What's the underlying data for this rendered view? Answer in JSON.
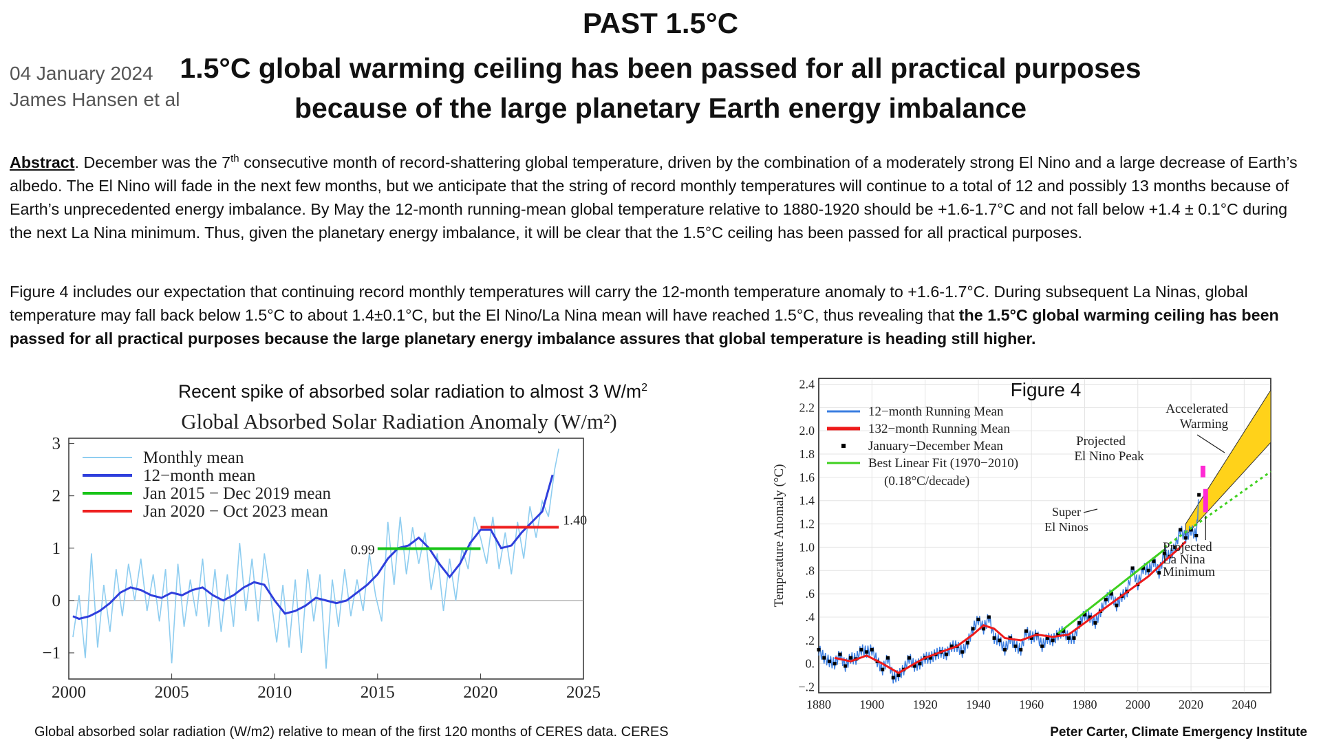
{
  "header": {
    "title": "PAST 1.5°C",
    "subtitle_line1": "1.5°C global warming ceiling has been passed for all practical purposes",
    "subtitle_line2": "because of the large planetary Earth energy imbalance",
    "date": "04 January 2024",
    "author": "James Hansen et al"
  },
  "abstract": {
    "label": "Abstract",
    "text_pre": ". December was the 7",
    "sup": "th",
    "text_post": " consecutive month of record-shattering global temperature, driven by the combination of a moderately strong El Nino and a large decrease of Earth’s albedo. The El Nino will fade in the next few months, but we anticipate that the string of record monthly temperatures will continue to a total of 12 and possibly 13 months because of Earth’s unprecedented energy imbalance. By May the 12-month running-mean global temperature relative to 1880-1920 should be +1.6-1.7°C and not fall below +1.4 ± 0.1°C during the next La Nina minimum. Thus, given the planetary energy imbalance, it will be clear that the 1.5°C ceiling has been passed for all practical purposes."
  },
  "fig4_paragraph": {
    "text": "Figure 4 includes our expectation that continuing record monthly temperatures will carry the 12-month temperature anomaly to +1.6-1.7°C. During subsequent La Ninas, global temperature may fall back below 1.5°C to about 1.4±0.1°C, but the El Nino/La Nina mean will have reached 1.5°C, thus revealing that ",
    "bold": "the 1.5°C global warming ceiling has been passed for all practical purposes because the large planetary energy imbalance assures that global temperature is heading still higher."
  },
  "left_figure": {
    "header_pre": "Recent spike of absorbed solar radiation to almost 3 W/m",
    "header_sup": "2",
    "caption": "Global absorbed solar radiation (W/m2) relative to mean of the first 120 months of CERES data. CERES"
  },
  "right_figure": {
    "credit": "Peter Carter, Climate Emergency Institute"
  },
  "chart_data": [
    {
      "type": "line",
      "title": "Global Absorbed Solar Radiation Anomaly (W/m²)",
      "xlim": [
        2000,
        2025
      ],
      "ylim": [
        -1.5,
        3.1
      ],
      "xticks": [
        2000,
        2005,
        2010,
        2015,
        2020,
        2025
      ],
      "yticks": [
        -1,
        0,
        1,
        2,
        3
      ],
      "legend": [
        "Monthly mean",
        "12−month mean",
        "Jan 2015 − Dec 2019 mean",
        "Jan 2020 − Oct 2023 mean"
      ],
      "legend_position": "top-left",
      "colors": {
        "monthly": "#8ecdf0",
        "twelve": "#2f3fdc",
        "mean1": "#18c418",
        "mean2": "#ee2020"
      },
      "mean_lines": [
        {
          "name": "Jan 2015 − Dec 2019 mean",
          "x": [
            2015,
            2020
          ],
          "y": 0.99,
          "label": "0.99"
        },
        {
          "name": "Jan 2020 − Oct 2023 mean",
          "x": [
            2020,
            2023.8
          ],
          "y": 1.4,
          "label": "1.40"
        }
      ],
      "twelve_month": {
        "x": [
          2000.2,
          2000.5,
          2001,
          2001.5,
          2002,
          2002.5,
          2003,
          2003.5,
          2004,
          2004.5,
          2005,
          2005.5,
          2006,
          2006.5,
          2007,
          2007.5,
          2008,
          2008.5,
          2009,
          2009.5,
          2010,
          2010.5,
          2011,
          2011.5,
          2012,
          2012.5,
          2013,
          2013.5,
          2014,
          2014.5,
          2015,
          2015.5,
          2016,
          2016.5,
          2017,
          2017.5,
          2018,
          2018.5,
          2019,
          2019.5,
          2020,
          2020.5,
          2021,
          2021.5,
          2022,
          2022.5,
          2023,
          2023.5
        ],
        "y": [
          -0.3,
          -0.35,
          -0.3,
          -0.2,
          -0.05,
          0.15,
          0.25,
          0.2,
          0.1,
          0.05,
          0.15,
          0.1,
          0.2,
          0.25,
          0.1,
          0.0,
          0.1,
          0.25,
          0.35,
          0.3,
          0.0,
          -0.25,
          -0.2,
          -0.1,
          0.05,
          0.0,
          -0.05,
          0.0,
          0.15,
          0.3,
          0.5,
          0.8,
          1.0,
          1.05,
          1.2,
          1.0,
          0.7,
          0.45,
          0.7,
          1.1,
          1.35,
          1.35,
          1.0,
          1.05,
          1.3,
          1.5,
          1.7,
          2.4
        ]
      },
      "monthly": {
        "x": [
          2000.2,
          2000.5,
          2000.8,
          2001.1,
          2001.4,
          2001.7,
          2002,
          2002.3,
          2002.6,
          2002.9,
          2003.2,
          2003.5,
          2003.8,
          2004.1,
          2004.4,
          2004.7,
          2005,
          2005.3,
          2005.6,
          2005.9,
          2006.2,
          2006.5,
          2006.8,
          2007.1,
          2007.4,
          2007.7,
          2008,
          2008.3,
          2008.6,
          2008.9,
          2009.2,
          2009.5,
          2009.8,
          2010.1,
          2010.4,
          2010.7,
          2011,
          2011.3,
          2011.6,
          2011.9,
          2012.2,
          2012.5,
          2012.8,
          2013.1,
          2013.4,
          2013.7,
          2014,
          2014.3,
          2014.6,
          2014.9,
          2015.2,
          2015.5,
          2015.8,
          2016.1,
          2016.4,
          2016.7,
          2017,
          2017.3,
          2017.6,
          2017.9,
          2018.2,
          2018.5,
          2018.8,
          2019.1,
          2019.4,
          2019.7,
          2020,
          2020.3,
          2020.6,
          2020.9,
          2021.2,
          2021.5,
          2021.8,
          2022.1,
          2022.4,
          2022.7,
          2023,
          2023.3,
          2023.6,
          2023.8
        ],
        "y": [
          -0.7,
          0.1,
          -1.1,
          0.9,
          -0.9,
          0.3,
          -0.6,
          0.6,
          -0.3,
          0.7,
          0.0,
          0.8,
          -0.2,
          0.5,
          -0.4,
          0.6,
          -1.2,
          0.7,
          -0.5,
          0.4,
          -0.3,
          0.8,
          -0.5,
          0.6,
          -0.6,
          0.5,
          -0.5,
          1.1,
          -0.2,
          0.8,
          -0.4,
          0.9,
          0.1,
          -0.8,
          0.3,
          -0.9,
          0.4,
          -1.0,
          0.6,
          -0.4,
          0.5,
          -1.3,
          0.4,
          -0.5,
          0.6,
          -0.3,
          0.4,
          -0.2,
          0.9,
          0.1,
          -0.4,
          1.5,
          0.3,
          1.6,
          0.5,
          1.4,
          0.7,
          1.3,
          0.2,
          0.9,
          -0.2,
          0.8,
          0.0,
          1.0,
          0.6,
          1.6,
          1.2,
          0.7,
          1.6,
          0.6,
          1.3,
          0.5,
          1.5,
          0.8,
          1.8,
          1.2,
          1.9,
          1.6,
          2.5,
          2.9
        ]
      }
    },
    {
      "type": "scatter",
      "title": "Figure 4",
      "ylabel": "Temperature Anomaly (°C)",
      "xlim": [
        1880,
        2050
      ],
      "ylim": [
        -0.25,
        2.45
      ],
      "xticks": [
        1880,
        1900,
        1920,
        1940,
        1960,
        1980,
        2000,
        2020,
        2040
      ],
      "yticks": [
        "−.2",
        "0.",
        ".2",
        ".4",
        ".6",
        ".8",
        "1.0",
        "1.2",
        "1.4",
        "1.6",
        "1.8",
        "2.0",
        "2.2",
        "2.4"
      ],
      "ytick_values": [
        -0.2,
        0,
        0.2,
        0.4,
        0.6,
        0.8,
        1.0,
        1.2,
        1.4,
        1.6,
        1.8,
        2.0,
        2.2,
        2.4
      ],
      "legend": [
        "12−month Running Mean",
        "132−month Running Mean",
        "January−December Mean",
        "Best Linear Fit (1970−2010)"
      ],
      "legend_note": "(0.18°C/decade)",
      "legend_position": "top-left",
      "annotations": [
        "Accelerated Warming",
        "Projected El Nino Peak",
        "Super El Ninos",
        "Projected La Nina Minimum"
      ],
      "annotation_lines": {
        "accel_line1": "Accelerated",
        "accel_line2": "Warming",
        "elnino_line1": "Projected",
        "elnino_line2": "El Nino Peak",
        "super_line1": "Super",
        "super_line2": "El Ninos",
        "lanina_line1": "Projected",
        "lanina_line2": "La Nina",
        "lanina_line3": "Minimum"
      },
      "colors": {
        "twelve": "#3a7de0",
        "long": "#ee1a1a",
        "annual": "#000000",
        "fit": "#3fd01f",
        "wedge": "#ffd21a",
        "projection": "#ff2ad4"
      },
      "annual": {
        "x": [
          1880,
          1882,
          1884,
          1886,
          1888,
          1890,
          1892,
          1894,
          1896,
          1898,
          1900,
          1902,
          1904,
          1906,
          1908,
          1910,
          1912,
          1914,
          1916,
          1918,
          1920,
          1922,
          1924,
          1926,
          1928,
          1930,
          1932,
          1934,
          1936,
          1938,
          1940,
          1942,
          1944,
          1946,
          1948,
          1950,
          1952,
          1954,
          1956,
          1958,
          1960,
          1962,
          1964,
          1966,
          1968,
          1970,
          1972,
          1974,
          1976,
          1978,
          1980,
          1982,
          1984,
          1986,
          1988,
          1990,
          1992,
          1994,
          1996,
          1998,
          2000,
          2002,
          2004,
          2006,
          2008,
          2010,
          2012,
          2014,
          2016,
          2018,
          2020,
          2022,
          2023
        ],
        "y": [
          0.12,
          0.05,
          0.02,
          0.0,
          0.08,
          -0.02,
          0.05,
          0.04,
          0.12,
          0.1,
          0.12,
          0.02,
          -0.05,
          0.05,
          -0.12,
          -0.1,
          -0.05,
          0.05,
          -0.02,
          0.0,
          0.05,
          0.05,
          0.08,
          0.1,
          0.08,
          0.15,
          0.15,
          0.1,
          0.18,
          0.3,
          0.38,
          0.3,
          0.4,
          0.22,
          0.2,
          0.12,
          0.22,
          0.15,
          0.12,
          0.28,
          0.22,
          0.25,
          0.15,
          0.22,
          0.2,
          0.25,
          0.28,
          0.22,
          0.22,
          0.35,
          0.42,
          0.4,
          0.35,
          0.45,
          0.55,
          0.6,
          0.5,
          0.58,
          0.62,
          0.82,
          0.68,
          0.82,
          0.8,
          0.88,
          0.78,
          0.95,
          0.92,
          1.0,
          1.15,
          1.08,
          1.15,
          1.1,
          1.45
        ]
      },
      "long_mean": {
        "x": [
          1886,
          1892,
          1898,
          1904,
          1910,
          1916,
          1920,
          1926,
          1932,
          1938,
          1942,
          1946,
          1950,
          1956,
          1962,
          1968,
          1974,
          1980,
          1986,
          1992,
          1998,
          2004,
          2010,
          2016,
          2018
        ],
        "y": [
          0.05,
          0.02,
          0.07,
          0.0,
          -0.08,
          0.0,
          0.05,
          0.1,
          0.15,
          0.25,
          0.33,
          0.3,
          0.22,
          0.2,
          0.25,
          0.23,
          0.25,
          0.35,
          0.45,
          0.55,
          0.65,
          0.75,
          0.88,
          1.0,
          1.05
        ]
      },
      "fit": {
        "x": [
          1970,
          2010
        ],
        "y": [
          0.26,
          0.98
        ]
      },
      "projection_dotted": {
        "x": [
          2010,
          2050
        ],
        "y": [
          1.0,
          1.65
        ]
      },
      "accelerated_wedge": {
        "x": [
          2018,
          2050
        ],
        "y_low": [
          1.1,
          1.9
        ],
        "y_high": [
          1.2,
          2.35
        ]
      },
      "projected_el_nino": {
        "x": 2024.5,
        "y": [
          1.6,
          1.7
        ]
      },
      "projected_la_nina": {
        "x": 2025.5,
        "y": [
          1.3,
          1.5
        ]
      }
    }
  ]
}
